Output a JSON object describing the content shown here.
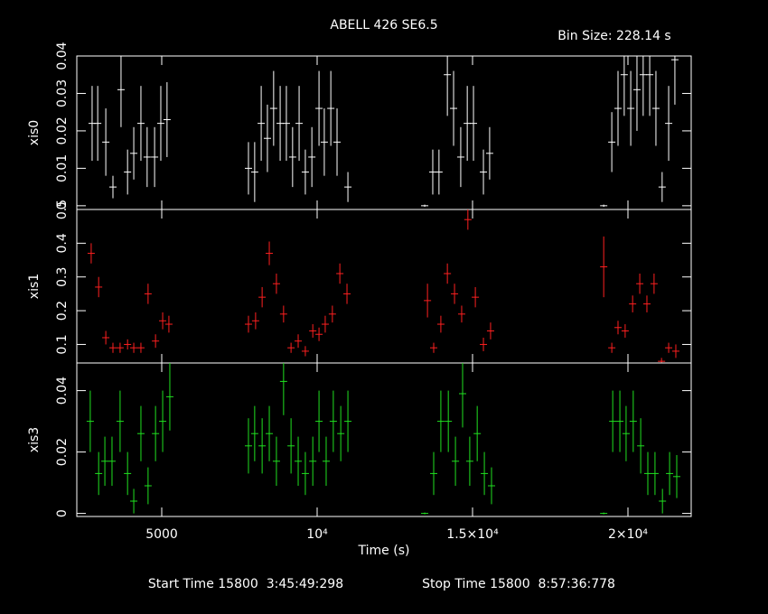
{
  "chart_data": [
    {
      "type": "errorbar",
      "title": "ABELL 426 SE6.5",
      "bin_size_label": "Bin Size: 228.14 s",
      "ylabel": "xis0",
      "color": "#ffffff",
      "xlim": [
        2267,
        22035
      ],
      "xticks": [
        5000,
        10000,
        15000,
        20000
      ],
      "ylim": [
        -0.001,
        0.04
      ],
      "yticks": [
        0,
        0.01,
        0.02,
        0.03,
        0.04
      ],
      "x": [
        2760,
        2940,
        3200,
        3430,
        3690,
        3900,
        4100,
        4330,
        4530,
        4770,
        4970,
        5170,
        7790,
        7990,
        8200,
        8400,
        8600,
        8810,
        9010,
        9210,
        9420,
        9620,
        9830,
        10060,
        10230,
        10440,
        10640,
        10990,
        13460,
        13720,
        13920,
        14190,
        14390,
        14620,
        14830,
        15030,
        15350,
        15550,
        19220,
        19480,
        19680,
        19880,
        20090,
        20290,
        20490,
        20700,
        20900,
        21100,
        21310,
        21510
      ],
      "values": [
        0.022,
        0.022,
        0.017,
        0.005,
        0.031,
        0.009,
        0.014,
        0.022,
        0.013,
        0.013,
        0.022,
        0.023,
        0.01,
        0.009,
        0.022,
        0.018,
        0.026,
        0.022,
        0.022,
        0.013,
        0.022,
        0.009,
        0.013,
        0.026,
        0.017,
        0.026,
        0.017,
        0.005,
        0,
        0.009,
        0.009,
        0.035,
        0.026,
        0.013,
        0.022,
        0.022,
        0.009,
        0.014,
        0,
        0.017,
        0.026,
        0.035,
        0.026,
        0.031,
        0.035,
        0.035,
        0.026,
        0.005,
        0.022,
        0.039
      ],
      "errors": [
        0.01,
        0.01,
        0.009,
        0.003,
        0.01,
        0.006,
        0.007,
        0.01,
        0.008,
        0.008,
        0.01,
        0.01,
        0.007,
        0.008,
        0.01,
        0.009,
        0.01,
        0.01,
        0.01,
        0.008,
        0.01,
        0.006,
        0.008,
        0.01,
        0.009,
        0.01,
        0.009,
        0.004,
        0.0003,
        0.006,
        0.006,
        0.011,
        0.01,
        0.008,
        0.01,
        0.01,
        0.006,
        0.007,
        0.0003,
        0.008,
        0.01,
        0.011,
        0.01,
        0.011,
        0.011,
        0.011,
        0.01,
        0.004,
        0.01,
        0.012
      ]
    },
    {
      "type": "errorbar",
      "ylabel": "xis1",
      "color": "#ff2020",
      "xlim": [
        2267,
        22035
      ],
      "xticks": [
        5000,
        10000,
        15000,
        20000
      ],
      "ylim": [
        0.045,
        0.5
      ],
      "yticks": [
        0.1,
        0.2,
        0.3,
        0.4,
        0.5
      ],
      "x": [
        2730,
        2970,
        3200,
        3430,
        3660,
        3900,
        4100,
        4330,
        4560,
        4800,
        5030,
        5230,
        7790,
        8020,
        8230,
        8460,
        8690,
        8920,
        9160,
        9390,
        9620,
        9860,
        10060,
        10260,
        10490,
        10730,
        10960,
        13550,
        13750,
        13980,
        14190,
        14420,
        14650,
        14850,
        15090,
        15350,
        15580,
        19220,
        19480,
        19680,
        19910,
        20150,
        20380,
        20610,
        20840,
        21080,
        21310,
        21540
      ],
      "values": [
        0.37,
        0.27,
        0.12,
        0.09,
        0.09,
        0.1,
        0.09,
        0.09,
        0.25,
        0.11,
        0.17,
        0.16,
        0.16,
        0.17,
        0.24,
        0.37,
        0.28,
        0.19,
        0.09,
        0.11,
        0.08,
        0.14,
        0.13,
        0.16,
        0.19,
        0.31,
        0.25,
        0.23,
        0.09,
        0.16,
        0.31,
        0.25,
        0.19,
        0.47,
        0.24,
        0.1,
        0.14,
        0.33,
        0.09,
        0.15,
        0.14,
        0.22,
        0.28,
        0.22,
        0.28,
        0.05,
        0.09,
        0.08
      ],
      "errors": [
        0.03,
        0.03,
        0.02,
        0.015,
        0.015,
        0.015,
        0.015,
        0.015,
        0.03,
        0.02,
        0.025,
        0.025,
        0.025,
        0.025,
        0.03,
        0.035,
        0.03,
        0.025,
        0.015,
        0.02,
        0.015,
        0.02,
        0.02,
        0.025,
        0.025,
        0.03,
        0.03,
        0.05,
        0.015,
        0.025,
        0.03,
        0.03,
        0.025,
        0.03,
        0.03,
        0.02,
        0.025,
        0.09,
        0.015,
        0.02,
        0.02,
        0.025,
        0.03,
        0.025,
        0.03,
        0.01,
        0.015,
        0.02
      ]
    },
    {
      "type": "errorbar",
      "ylabel": "xis3",
      "color": "#20e020",
      "xlabel": "Time (s)",
      "xlim": [
        2267,
        22035
      ],
      "xticks": [
        5000,
        {
          "value": 10000,
          "label": "10⁴"
        },
        {
          "value": 15000,
          "label": "1.5×10⁴"
        },
        {
          "value": 20000,
          "label": "2×10⁴"
        }
      ],
      "ylim": [
        -0.001,
        0.049
      ],
      "yticks": [
        0,
        0.02,
        0.04
      ],
      "x": [
        2700,
        2970,
        3170,
        3400,
        3660,
        3900,
        4100,
        4330,
        4560,
        4800,
        5030,
        5260,
        7790,
        7990,
        8230,
        8460,
        8690,
        8920,
        9160,
        9390,
        9620,
        9860,
        10060,
        10290,
        10520,
        10760,
        10990,
        13460,
        13750,
        13980,
        14220,
        14450,
        14680,
        14910,
        15150,
        15380,
        15610,
        19220,
        19510,
        19740,
        19940,
        20170,
        20410,
        20640,
        20870,
        21110,
        21340,
        21570
      ],
      "values": [
        0.03,
        0.013,
        0.017,
        0.017,
        0.03,
        0.013,
        0.004,
        0.026,
        0.009,
        0.026,
        0.03,
        0.038,
        0.022,
        0.026,
        0.022,
        0.026,
        0.017,
        0.043,
        0.022,
        0.017,
        0.013,
        0.017,
        0.03,
        0.017,
        0.03,
        0.026,
        0.03,
        0,
        0.013,
        0.03,
        0.03,
        0.017,
        0.039,
        0.017,
        0.026,
        0.013,
        0.009,
        0,
        0.03,
        0.03,
        0.026,
        0.03,
        0.022,
        0.013,
        0.013,
        0.004,
        0.013,
        0.012
      ],
      "errors": [
        0.01,
        0.007,
        0.008,
        0.008,
        0.01,
        0.007,
        0.004,
        0.009,
        0.006,
        0.009,
        0.01,
        0.011,
        0.009,
        0.009,
        0.009,
        0.009,
        0.008,
        0.011,
        0.009,
        0.008,
        0.007,
        0.008,
        0.01,
        0.008,
        0.01,
        0.009,
        0.01,
        0.0003,
        0.007,
        0.01,
        0.01,
        0.008,
        0.011,
        0.008,
        0.009,
        0.007,
        0.006,
        0.0003,
        0.01,
        0.01,
        0.009,
        0.01,
        0.009,
        0.007,
        0.007,
        0.004,
        0.007,
        0.007
      ]
    }
  ],
  "footer": {
    "start": "Start Time 15800  3:45:49:298",
    "stop": "Stop Time 15800  8:57:36:778"
  }
}
